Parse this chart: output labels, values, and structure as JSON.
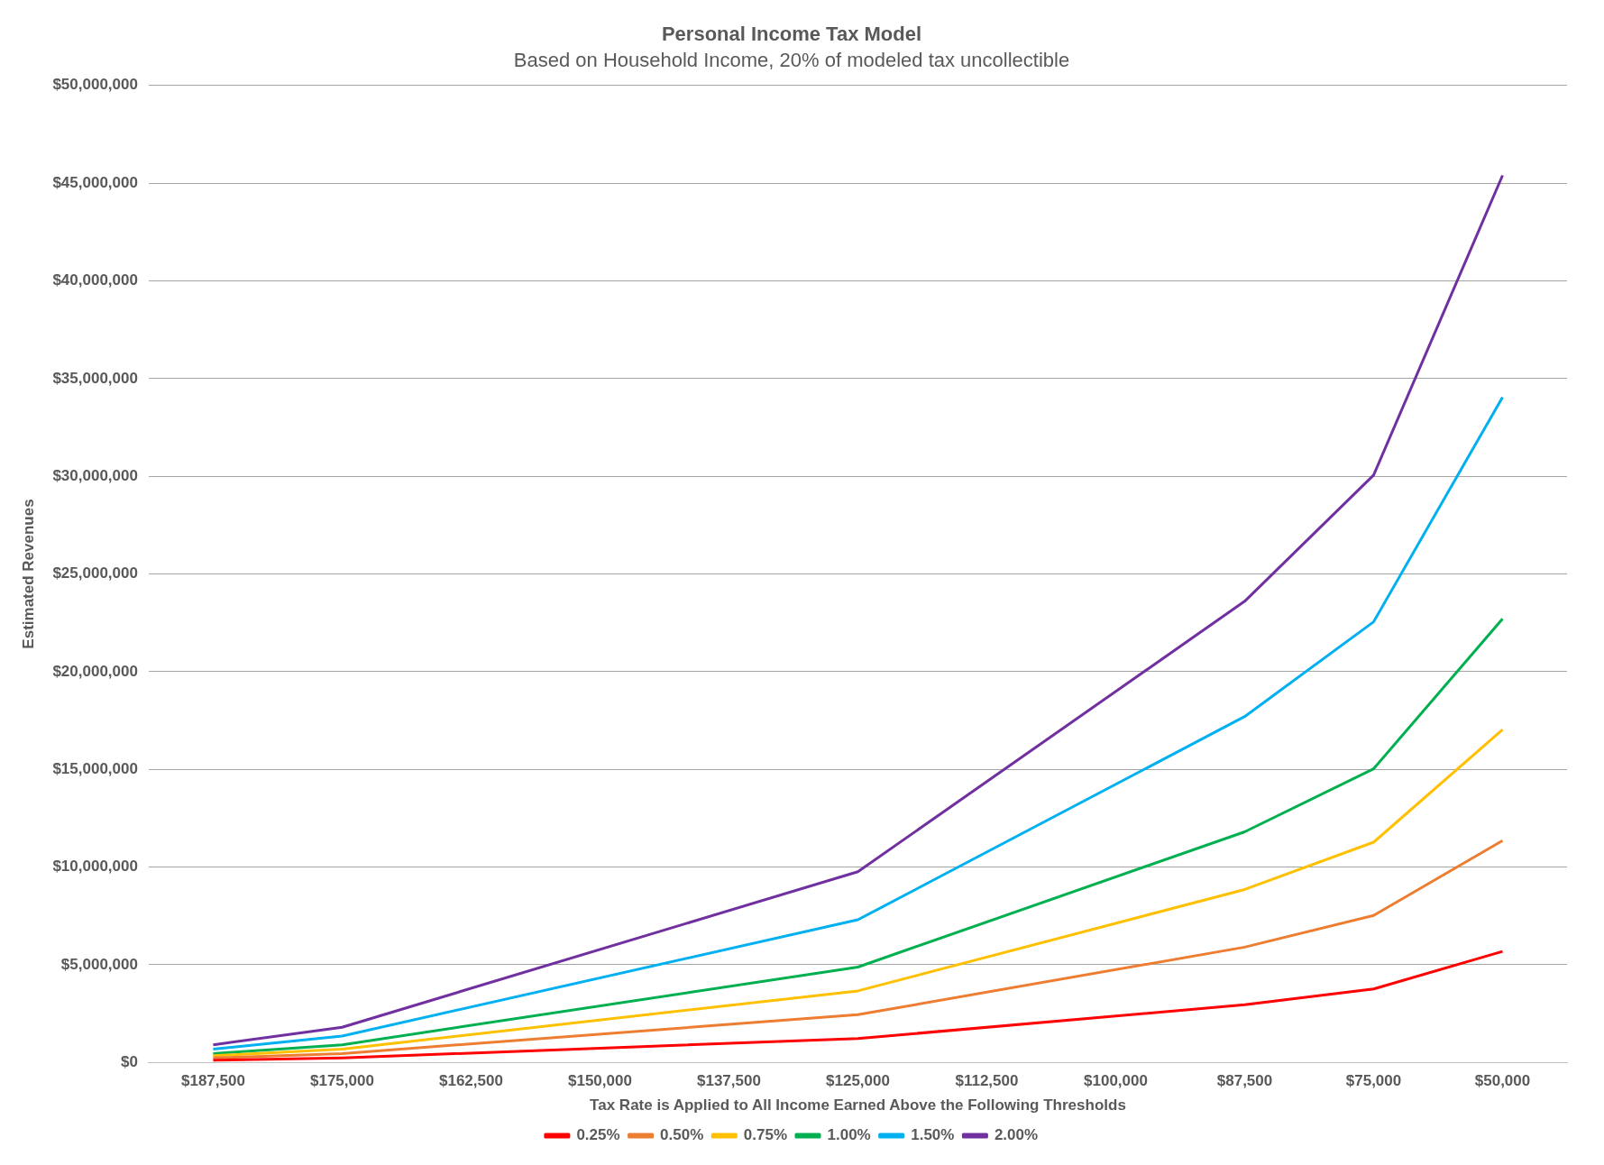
{
  "chart_data": {
    "type": "line",
    "title": "Personal Income Tax Model",
    "subtitle": "Based on Household Income, 20% of modeled tax uncollectible",
    "xlabel": "Tax Rate is Applied to All Income Earned Above the Following Thresholds",
    "ylabel": "Estimated Revenues",
    "categories": [
      "$187,500",
      "$175,000",
      "$162,500",
      "$150,000",
      "$137,500",
      "$125,000",
      "$112,500",
      "$100,000",
      "$87,500",
      "$75,000",
      "$50,000"
    ],
    "series": [
      {
        "name": "0.25%",
        "color": "#ff0000",
        "values": [
          110000,
          230000,
          null,
          null,
          null,
          1220000,
          null,
          null,
          2950000,
          3760000,
          5680000
        ]
      },
      {
        "name": "0.50%",
        "color": "#ed7d31",
        "values": [
          230000,
          450000,
          null,
          null,
          null,
          2440000,
          null,
          null,
          5900000,
          7520000,
          11350000
        ]
      },
      {
        "name": "0.75%",
        "color": "#ffc000",
        "values": [
          340000,
          680000,
          null,
          null,
          null,
          3660000,
          null,
          null,
          8850000,
          11270000,
          17030000
        ]
      },
      {
        "name": "1.00%",
        "color": "#00b050",
        "values": [
          450000,
          900000,
          null,
          null,
          null,
          4880000,
          null,
          null,
          11800000,
          15030000,
          22700000
        ]
      },
      {
        "name": "1.50%",
        "color": "#00b0f0",
        "values": [
          680000,
          1350000,
          null,
          null,
          null,
          7300000,
          null,
          null,
          17700000,
          22550000,
          34050000
        ]
      },
      {
        "name": "2.00%",
        "color": "#7030a0",
        "values": [
          900000,
          1800000,
          null,
          null,
          null,
          9760000,
          null,
          null,
          23600000,
          30060000,
          45400000
        ]
      }
    ],
    "ylim": [
      0,
      50000000
    ],
    "yticks": [
      {
        "value": 0,
        "label": "$0"
      },
      {
        "value": 5000000,
        "label": "$5,000,000"
      },
      {
        "value": 10000000,
        "label": "$10,000,000"
      },
      {
        "value": 15000000,
        "label": "$15,000,000"
      },
      {
        "value": 20000000,
        "label": "$20,000,000"
      },
      {
        "value": 25000000,
        "label": "$25,000,000"
      },
      {
        "value": 30000000,
        "label": "$30,000,000"
      },
      {
        "value": 35000000,
        "label": "$35,000,000"
      },
      {
        "value": 40000000,
        "label": "$40,000,000"
      },
      {
        "value": 45000000,
        "label": "$45,000,000"
      },
      {
        "value": 50000000,
        "label": "$50,000,000"
      }
    ],
    "grid": "y",
    "legend": "bottom",
    "marker": "none",
    "line_style": "solid"
  }
}
